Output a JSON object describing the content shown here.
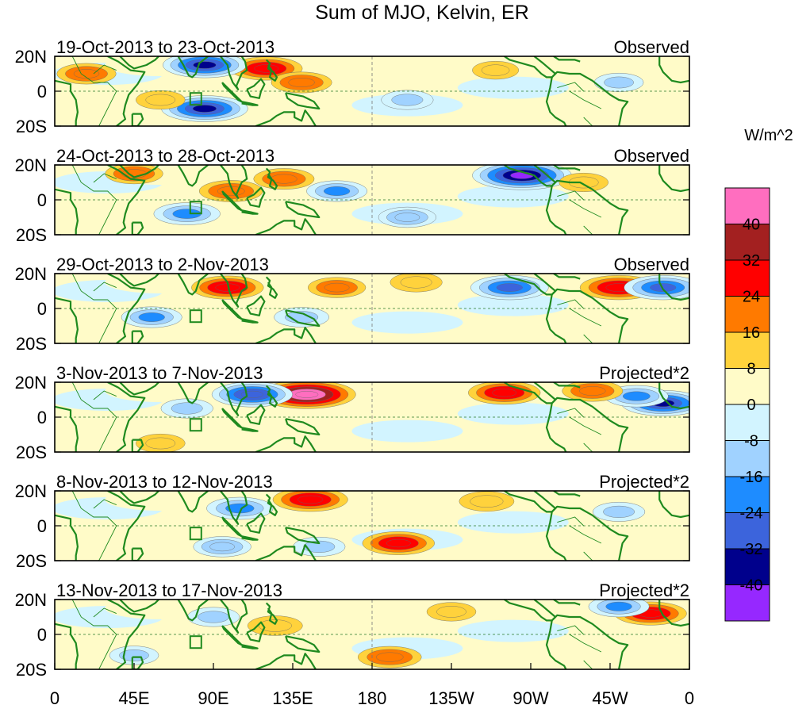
{
  "chart_data": {
    "type": "heatmap",
    "title": "Sum of MJO, Kelvin, ER",
    "colorbar_unit": "W/m^2",
    "x_ticks": [
      "0",
      "45E",
      "90E",
      "135E",
      "180",
      "135W",
      "90W",
      "45W",
      "0"
    ],
    "y_ticks": [
      "20N",
      "0",
      "20S"
    ],
    "xlim": [
      0,
      360
    ],
    "ylim": [
      -20,
      20
    ],
    "levels": [
      "40",
      "32",
      "24",
      "16",
      "8",
      "0",
      "-8",
      "-16",
      "-24",
      "-32",
      "-40"
    ],
    "colors": [
      "#ff6ebf",
      "#a32020",
      "#ff0000",
      "#ff7a00",
      "#ffd23c",
      "#fffbc8",
      "#d2f4ff",
      "#a0d2ff",
      "#1e8cff",
      "#3c64dc",
      "#00008c",
      "#9628ff"
    ],
    "land_color": "#1f8a1f",
    "panels": [
      {
        "date_range": "19-Oct-2013 to 23-Oct-2013",
        "label": "Observed",
        "anomalies": [
          {
            "lon": 120,
            "lat": 13,
            "value": 26
          },
          {
            "lon": 140,
            "lat": 5,
            "value": 18
          },
          {
            "lon": 85,
            "lat": 15,
            "value": -34
          },
          {
            "lon": 85,
            "lat": -10,
            "value": -36
          },
          {
            "lon": 18,
            "lat": 10,
            "value": 17
          },
          {
            "lon": 200,
            "lat": -5,
            "value": -12
          },
          {
            "lon": 60,
            "lat": -5,
            "value": 10
          },
          {
            "lon": 320,
            "lat": 5,
            "value": -10
          },
          {
            "lon": 250,
            "lat": 12,
            "value": 8
          }
        ]
      },
      {
        "date_range": "24-Oct-2013 to 28-Oct-2013",
        "label": "Observed",
        "anomalies": [
          {
            "lon": 265,
            "lat": 14,
            "value": -45
          },
          {
            "lon": 100,
            "lat": 5,
            "value": 20
          },
          {
            "lon": 130,
            "lat": 12,
            "value": 18
          },
          {
            "lon": 75,
            "lat": -8,
            "value": -22
          },
          {
            "lon": 160,
            "lat": 5,
            "value": -18
          },
          {
            "lon": 200,
            "lat": -10,
            "value": -16
          },
          {
            "lon": 45,
            "lat": 15,
            "value": 16
          },
          {
            "lon": 300,
            "lat": 10,
            "value": 10
          }
        ]
      },
      {
        "date_range": "29-Oct-2013 to 2-Nov-2013",
        "label": "Observed",
        "anomalies": [
          {
            "lon": 98,
            "lat": 12,
            "value": 26
          },
          {
            "lon": 320,
            "lat": 12,
            "value": 30
          },
          {
            "lon": 258,
            "lat": 12,
            "value": -30
          },
          {
            "lon": 345,
            "lat": 12,
            "value": -30
          },
          {
            "lon": 55,
            "lat": -5,
            "value": -18
          },
          {
            "lon": 160,
            "lat": 12,
            "value": 16
          },
          {
            "lon": 140,
            "lat": -5,
            "value": -14
          },
          {
            "lon": 205,
            "lat": 15,
            "value": 12
          }
        ]
      },
      {
        "date_range": "3-Nov-2013 to 7-Nov-2013",
        "label": "Projected*2",
        "anomalies": [
          {
            "lon": 143,
            "lat": 13,
            "value": 44
          },
          {
            "lon": 112,
            "lat": 13,
            "value": -32
          },
          {
            "lon": 345,
            "lat": 8,
            "value": -34
          },
          {
            "lon": 330,
            "lat": 12,
            "value": -20
          },
          {
            "lon": 255,
            "lat": 14,
            "value": 26
          },
          {
            "lon": 305,
            "lat": 15,
            "value": 18
          },
          {
            "lon": 75,
            "lat": 5,
            "value": -12
          },
          {
            "lon": 60,
            "lat": -15,
            "value": 10
          }
        ]
      },
      {
        "date_range": "8-Nov-2013 to 12-Nov-2013",
        "label": "Projected*2",
        "anomalies": [
          {
            "lon": 145,
            "lat": 15,
            "value": 28
          },
          {
            "lon": 195,
            "lat": -10,
            "value": 26
          },
          {
            "lon": 105,
            "lat": 10,
            "value": -22
          },
          {
            "lon": 95,
            "lat": -12,
            "value": -16
          },
          {
            "lon": 245,
            "lat": 14,
            "value": 14
          },
          {
            "lon": 320,
            "lat": 8,
            "value": -12
          },
          {
            "lon": 150,
            "lat": -12,
            "value": -12
          }
        ]
      },
      {
        "date_range": "13-Nov-2013 to 17-Nov-2013",
        "label": "Projected*2",
        "anomalies": [
          {
            "lon": 338,
            "lat": 12,
            "value": 26
          },
          {
            "lon": 320,
            "lat": 16,
            "value": -18
          },
          {
            "lon": 190,
            "lat": -13,
            "value": 20
          },
          {
            "lon": 125,
            "lat": 5,
            "value": 14
          },
          {
            "lon": 90,
            "lat": 10,
            "value": -12
          },
          {
            "lon": 225,
            "lat": 13,
            "value": 10
          },
          {
            "lon": 45,
            "lat": -12,
            "value": -10
          }
        ]
      }
    ]
  }
}
